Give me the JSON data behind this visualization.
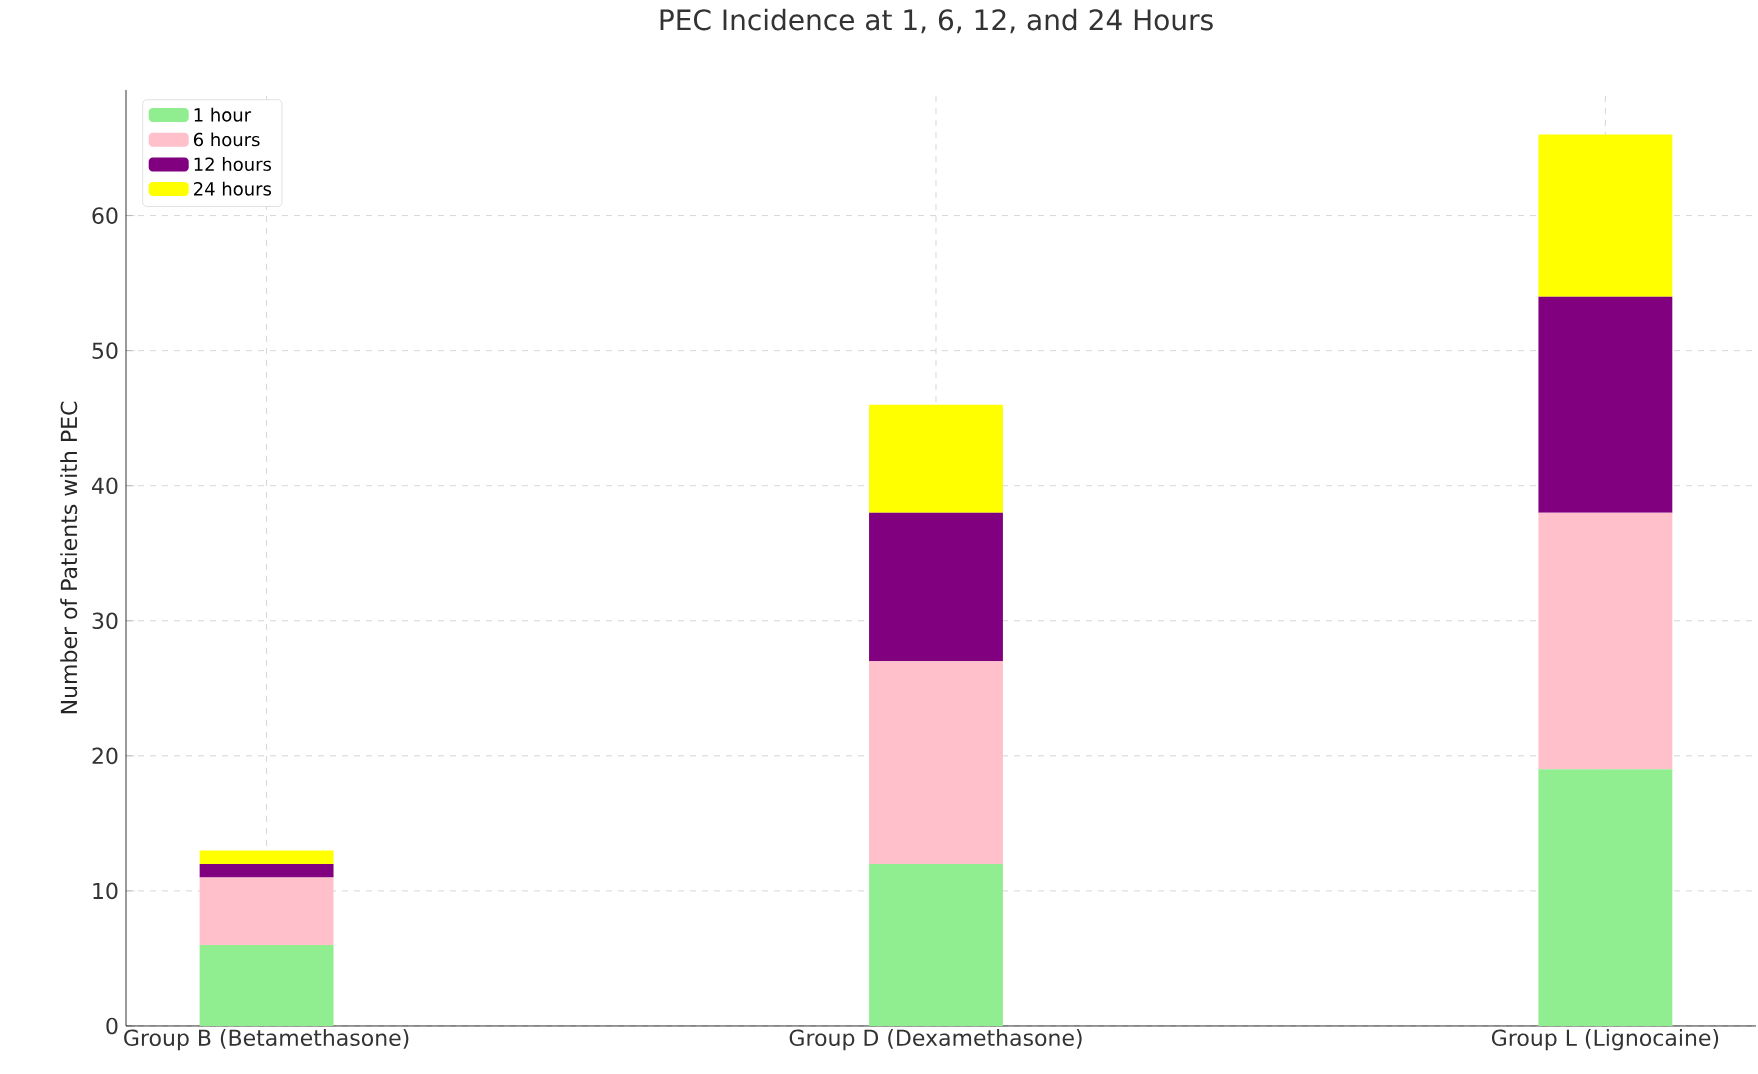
{
  "chart_data": {
    "type": "bar",
    "stacked": true,
    "title": "PEC Incidence at 1, 6, 12, and 24 Hours",
    "ylabel": "Number of Patients with PEC",
    "categories": [
      "Group B (Betamethasone)",
      "Group D (Dexamethasone)",
      "Group L (Lignocaine)"
    ],
    "series": [
      {
        "name": "1 hour",
        "color": "#90ee90",
        "values": [
          6,
          12,
          19
        ]
      },
      {
        "name": "6 hours",
        "color": "#ffc0cb",
        "values": [
          5,
          15,
          19
        ]
      },
      {
        "name": "12 hours",
        "color": "#800080",
        "values": [
          1,
          11,
          16
        ]
      },
      {
        "name": "24 hours",
        "color": "#ffff00",
        "values": [
          1,
          8,
          12
        ]
      }
    ],
    "ylim": [
      0,
      69.3
    ],
    "yticks": [
      0,
      10,
      20,
      30,
      40,
      50,
      60
    ],
    "grid": true,
    "legend": "top left"
  }
}
